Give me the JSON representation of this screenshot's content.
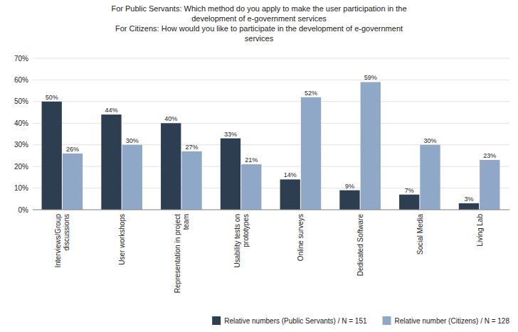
{
  "chart_data": {
    "type": "bar",
    "title": "For Public Servants: Which method do you apply to make the user participation in the\ndevelopment of e-government services\nFor Citizens: How would you like to participate in the development of e-government\nservices",
    "categories": [
      "Interviews/Group\ndiscussions",
      "User workshops",
      "Representation in project\nteam",
      "Usability tests on\nprototypes",
      "Online surveys",
      "Dedicated Software",
      "Social Media",
      "Living Lab"
    ],
    "series": [
      {
        "name": "Relative numbers (Public Servants) / N = 151",
        "color": "#2c3e50",
        "values": [
          50,
          44,
          40,
          33,
          14,
          9,
          7,
          3
        ],
        "value_labels": [
          "50%",
          "44%",
          "40%",
          "33%",
          "14%",
          "9%",
          "7%",
          "3%"
        ]
      },
      {
        "name": "Relative number (Citizens) / N = 128",
        "color": "#8fa8c8",
        "values": [
          26,
          30,
          27,
          21,
          52,
          59,
          30,
          23
        ],
        "value_labels": [
          "26%",
          "30%",
          "27%",
          "21%",
          "52%",
          "59%",
          "30%",
          "23%"
        ]
      }
    ],
    "ylim": [
      0,
      70
    ],
    "yticks": [
      {
        "value": 0,
        "label": "0%"
      },
      {
        "value": 10,
        "label": "10%"
      },
      {
        "value": 20,
        "label": "20%"
      },
      {
        "value": 30,
        "label": "30%"
      },
      {
        "value": 40,
        "label": "40%"
      },
      {
        "value": 50,
        "label": "50%"
      },
      {
        "value": 60,
        "label": "60%"
      },
      {
        "value": 70,
        "label": "70%"
      }
    ],
    "grid": true,
    "legend": "lower right",
    "data_labels": true
  }
}
